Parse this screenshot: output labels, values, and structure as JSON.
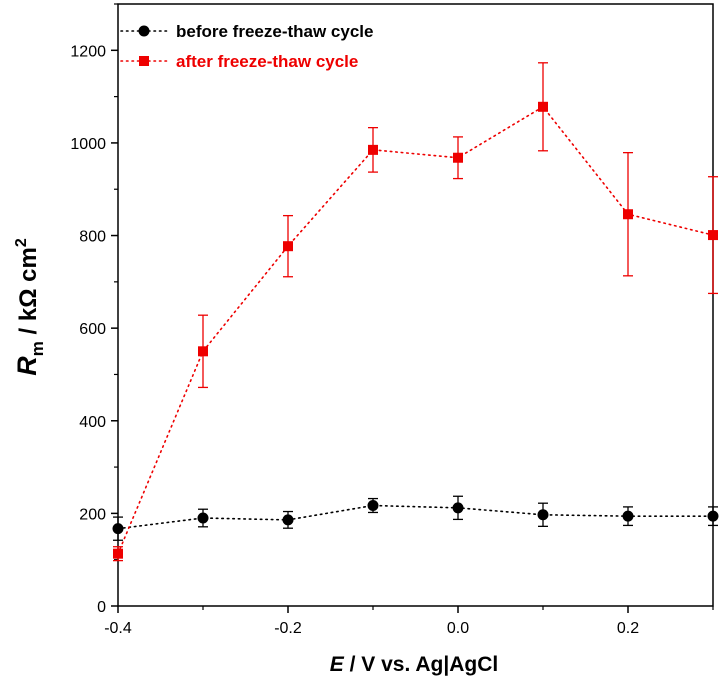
{
  "chart_data": {
    "type": "line",
    "title": "",
    "xlabel": {
      "italic": "E",
      "rest": " / V vs. Ag|AgCl"
    },
    "ylabel": {
      "italic": "R",
      "subscript": "m",
      "rest": " / kΩ cm",
      "superscript": "2"
    },
    "xlim": [
      -0.4,
      0.3
    ],
    "ylim": [
      0,
      1300
    ],
    "xticks": [
      "-0.4",
      "-0.2",
      "0.0",
      "0.2"
    ],
    "xtick_values": [
      -0.4,
      -0.2,
      0.0,
      0.2
    ],
    "yticks": [
      "0",
      "200",
      "400",
      "600",
      "800",
      "1000",
      "1200"
    ],
    "ytick_values": [
      0,
      200,
      400,
      600,
      800,
      1000,
      1200
    ],
    "grid": false,
    "legend_position": "top-left",
    "series": [
      {
        "name": "before freeze-thaw cycle",
        "color": "#000000",
        "marker": "circle",
        "line_style": "dotted",
        "x": [
          -0.4,
          -0.3,
          -0.2,
          -0.1,
          0.0,
          0.1,
          0.2,
          0.3
        ],
        "y": [
          167,
          190,
          186,
          217,
          212,
          197,
          194,
          194
        ],
        "error": [
          25,
          19,
          18,
          15,
          25,
          25,
          20,
          20
        ]
      },
      {
        "name": "after freeze-thaw cycle",
        "color": "#ee0000",
        "marker": "square",
        "line_style": "dotted",
        "x": [
          -0.4,
          -0.3,
          -0.2,
          -0.1,
          0.0,
          0.1,
          0.2,
          0.3
        ],
        "y": [
          113,
          550,
          777,
          985,
          968,
          1078,
          846,
          801
        ],
        "error": [
          15,
          78,
          66,
          48,
          45,
          95,
          133,
          126
        ]
      }
    ]
  }
}
